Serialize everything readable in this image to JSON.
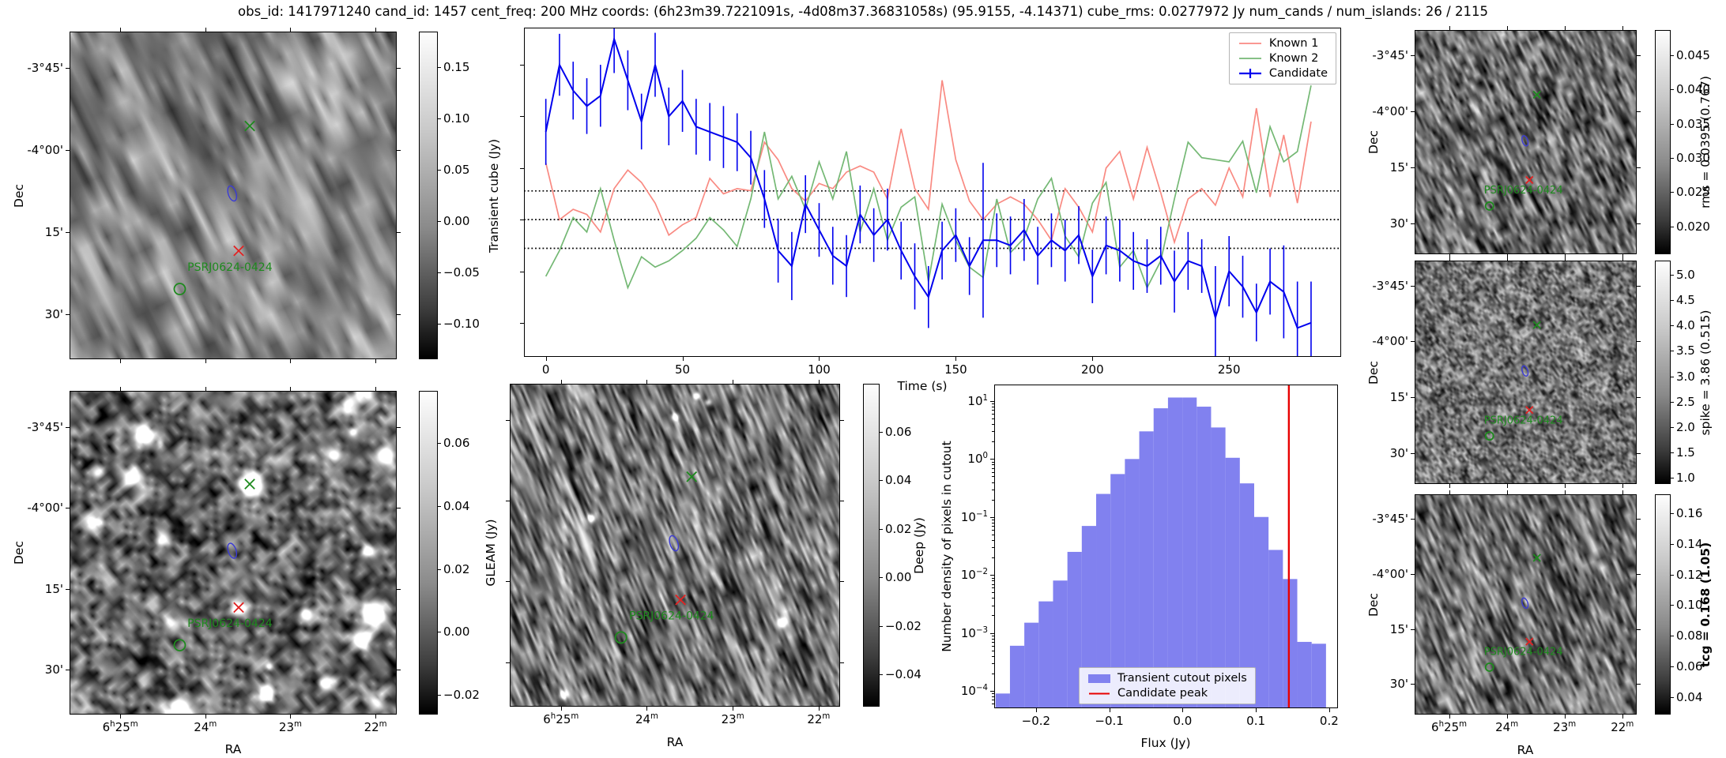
{
  "title": "obs_id: 1417971240 cand_id: 1457 cent_freq: 200 MHz coords: (6h23m39.7221091s, -4d08m37.36831058s) (95.9155, -4.14371) cube_rms: 0.0277972 Jy num_cands / num_islands: 26 / 2115",
  "axis_labels": {
    "dec": "Dec",
    "ra": "RA"
  },
  "dec_tick_labels": [
    "-3°45'",
    "-4°00'",
    "15'",
    "30'"
  ],
  "ra_tick_labels": [
    "6^h25^m",
    "24^m",
    "23^m",
    "22^m"
  ],
  "colorbars": {
    "transient": {
      "label": "Transient cube (Jy)",
      "ticks": [
        "0.15",
        "0.10",
        "0.05",
        "0.00",
        "−0.05",
        "−0.10"
      ],
      "bold": false
    },
    "gleam": {
      "label": "GLEAM (Jy)",
      "ticks": [
        "0.06",
        "0.04",
        "0.02",
        "0.00",
        "−0.02"
      ],
      "bold": false
    },
    "deep": {
      "label": "Deep (Jy)",
      "ticks": [
        "0.06",
        "0.04",
        "0.02",
        "0.00",
        "−0.02",
        "−0.04"
      ],
      "bold": false
    },
    "rms": {
      "label": "rms = 0.0395 (0.767)",
      "ticks": [
        "0.045",
        "0.040",
        "0.035",
        "0.030",
        "0.025",
        "0.020"
      ],
      "bold": false
    },
    "spike": {
      "label": "spike = 3.86 (0.515)",
      "ticks": [
        "5.0",
        "4.5",
        "4.0",
        "3.5",
        "3.0",
        "2.5",
        "2.0",
        "1.5",
        "1.0"
      ],
      "bold": false
    },
    "tcg": {
      "label": "tcg = 0.168 (1.05)",
      "ticks": [
        "0.16",
        "0.14",
        "0.12",
        "0.10",
        "0.08",
        "0.06",
        "0.04"
      ],
      "bold": true
    }
  },
  "sky_markers": {
    "source_label": "PSRJ0624-0424",
    "known_x_color": "#1e8a1e",
    "candidate_contour_color": "#3b3bd6",
    "candidate_x_color": "#e32222"
  },
  "chart_data": [
    {
      "type": "line",
      "title": "",
      "xlabel": "Time (s)",
      "ylabel": "",
      "xlim": [
        -8,
        291
      ],
      "ylim": [
        -0.133,
        0.186
      ],
      "xticks": [
        0,
        50,
        100,
        150,
        200,
        250
      ],
      "yticks_unlabeled": [
        0.15,
        0.1,
        0.05,
        0.0,
        -0.05,
        -0.1
      ],
      "hlines": [
        0.0277972,
        0.0,
        -0.0277972
      ],
      "legend_position": "upper right",
      "x": [
        0,
        5,
        10,
        15,
        20,
        25,
        30,
        35,
        40,
        45,
        50,
        55,
        60,
        65,
        70,
        75,
        80,
        85,
        90,
        95,
        100,
        105,
        110,
        115,
        120,
        125,
        130,
        135,
        140,
        145,
        150,
        155,
        160,
        165,
        170,
        175,
        180,
        185,
        190,
        195,
        200,
        205,
        210,
        215,
        220,
        225,
        230,
        235,
        240,
        245,
        250,
        255,
        260,
        265,
        270,
        275,
        280
      ],
      "series": [
        {
          "name": "Known 1",
          "color": "#f98a82",
          "values": [
            0.055,
            0.0,
            0.01,
            0.005,
            -0.012,
            0.03,
            0.048,
            0.036,
            0.016,
            -0.015,
            -0.005,
            0.002,
            0.04,
            0.025,
            0.03,
            0.028,
            0.075,
            0.058,
            0.03,
            0.018,
            0.035,
            0.03,
            0.046,
            0.052,
            0.046,
            0.02,
            0.088,
            0.03,
            0.01,
            0.135,
            0.058,
            0.018,
            0.0,
            0.015,
            0.022,
            0.015,
            0.0,
            -0.02,
            0.03,
            0.012,
            -0.012,
            0.05,
            0.066,
            0.02,
            0.07,
            0.026,
            -0.022,
            0.02,
            0.03,
            0.014,
            0.05,
            0.022,
            0.108,
            0.022,
            0.082,
            0.016,
            0.095
          ]
        },
        {
          "name": "Known 2",
          "color": "#74b874",
          "values": [
            -0.055,
            -0.03,
            0.002,
            -0.012,
            0.03,
            -0.02,
            -0.066,
            -0.036,
            -0.046,
            -0.04,
            -0.03,
            -0.018,
            0.002,
            -0.01,
            -0.026,
            0.02,
            0.085,
            0.02,
            0.042,
            0.01,
            0.056,
            0.02,
            0.066,
            -0.012,
            0.03,
            -0.02,
            0.012,
            0.022,
            -0.06,
            0.015,
            -0.02,
            -0.046,
            -0.056,
            0.02,
            -0.032,
            -0.018,
            0.02,
            0.04,
            -0.016,
            -0.036,
            0.016,
            0.036,
            -0.046,
            -0.03,
            -0.066,
            -0.04,
            0.02,
            0.075,
            0.06,
            0.058,
            0.056,
            0.076,
            0.026,
            0.09,
            0.056,
            0.066,
            0.13
          ]
        },
        {
          "name": "Candidate",
          "color": "#0000ee",
          "values": [
            0.085,
            0.15,
            0.125,
            0.11,
            0.12,
            0.175,
            0.135,
            0.095,
            0.15,
            0.1,
            0.115,
            0.09,
            0.085,
            0.08,
            0.075,
            0.06,
            0.02,
            -0.03,
            -0.045,
            0.015,
            -0.01,
            -0.035,
            -0.045,
            0.005,
            -0.015,
            0.0,
            -0.03,
            -0.055,
            -0.075,
            -0.03,
            -0.015,
            -0.045,
            -0.02,
            -0.02,
            -0.025,
            -0.01,
            -0.035,
            -0.02,
            -0.03,
            -0.015,
            -0.055,
            -0.025,
            -0.03,
            -0.04,
            -0.045,
            -0.035,
            -0.06,
            -0.04,
            -0.045,
            -0.095,
            -0.05,
            -0.065,
            -0.09,
            -0.06,
            -0.07,
            -0.105,
            -0.1
          ],
          "errors": [
            0.032,
            0.03,
            0.028,
            0.027,
            0.03,
            0.033,
            0.029,
            0.027,
            0.031,
            0.028,
            0.03,
            0.027,
            0.028,
            0.03,
            0.028,
            0.026,
            0.028,
            0.031,
            0.033,
            0.028,
            0.026,
            0.028,
            0.03,
            0.028,
            0.026,
            0.03,
            0.028,
            0.032,
            0.03,
            0.028,
            0.026,
            0.028,
            0.075,
            0.026,
            0.028,
            0.03,
            0.028,
            0.026,
            0.03,
            0.028,
            0.026,
            0.028,
            0.03,
            0.028,
            0.026,
            0.028,
            0.03,
            0.028,
            0.026,
            0.05,
            0.034,
            0.03,
            0.028,
            0.032,
            0.045,
            0.045,
            0.04
          ]
        }
      ]
    },
    {
      "type": "bar",
      "title": "",
      "xlabel": "Flux (Jy)",
      "ylabel": "Number density of pixels in cutout",
      "xlim": [
        -0.257,
        0.212
      ],
      "ylog_lim": [
        -4.3,
        1.285
      ],
      "xticks": [
        "−0.2",
        "−0.1",
        "0.0",
        "0.1",
        "0.2"
      ],
      "xtick_values": [
        -0.2,
        -0.1,
        0.0,
        0.1,
        0.2
      ],
      "ytick_exponents": [
        1,
        0,
        -1,
        -2,
        -3,
        -4
      ],
      "bin_start": -0.2551,
      "bin_width": 0.0196,
      "heights": [
        9e-05,
        0.0006,
        0.0015,
        0.0035,
        0.008,
        0.025,
        0.07,
        0.25,
        0.55,
        1.0,
        3.0,
        7.5,
        11.5,
        11.5,
        8.0,
        3.5,
        1.05,
        0.38,
        0.1,
        0.027,
        0.0085,
        0.0007,
        0.00065
      ],
      "bar_color": "#8181ef",
      "bar_label": "Transient cutout pixels",
      "vline": {
        "x": 0.145,
        "color": "#e80000",
        "label": "Candidate peak"
      },
      "legend_position": "lower center"
    }
  ]
}
